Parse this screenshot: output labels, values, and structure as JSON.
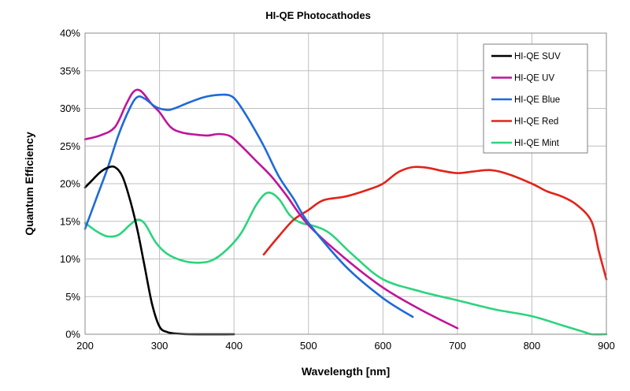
{
  "chart_data": {
    "type": "line",
    "title": "HI-QE Photocathodes",
    "xlabel": "Wavelength [nm]",
    "ylabel": "Quantum Efficiency",
    "xlim": [
      200,
      900
    ],
    "ylim": [
      0,
      0.4
    ],
    "x_ticks": [
      200,
      300,
      400,
      500,
      600,
      700,
      800,
      900
    ],
    "x_tick_labels": [
      "200",
      "300",
      "400",
      "500",
      "600",
      "700",
      "800",
      "900"
    ],
    "y_ticks": [
      0,
      0.05,
      0.1,
      0.15,
      0.2,
      0.25,
      0.3,
      0.35,
      0.4
    ],
    "y_tick_labels": [
      "0%",
      "5%",
      "10%",
      "15%",
      "20%",
      "25%",
      "30%",
      "35%",
      "40%"
    ],
    "grid": true,
    "legend_position": "top-right",
    "series": [
      {
        "name": "HI-QE SUV",
        "color": "#000000",
        "points": [
          [
            200,
            0.195
          ],
          [
            210,
            0.205
          ],
          [
            220,
            0.215
          ],
          [
            230,
            0.221
          ],
          [
            240,
            0.222
          ],
          [
            250,
            0.21
          ],
          [
            260,
            0.18
          ],
          [
            270,
            0.14
          ],
          [
            280,
            0.09
          ],
          [
            290,
            0.04
          ],
          [
            300,
            0.01
          ],
          [
            310,
            0.003
          ],
          [
            320,
            0.001
          ],
          [
            340,
            0.0
          ],
          [
            400,
            0.0
          ]
        ]
      },
      {
        "name": "HI-QE UV",
        "color": "#c0149a",
        "points": [
          [
            200,
            0.259
          ],
          [
            220,
            0.264
          ],
          [
            240,
            0.275
          ],
          [
            255,
            0.305
          ],
          [
            265,
            0.322
          ],
          [
            275,
            0.323
          ],
          [
            290,
            0.305
          ],
          [
            300,
            0.295
          ],
          [
            315,
            0.275
          ],
          [
            330,
            0.268
          ],
          [
            350,
            0.265
          ],
          [
            365,
            0.264
          ],
          [
            380,
            0.266
          ],
          [
            395,
            0.263
          ],
          [
            410,
            0.25
          ],
          [
            430,
            0.23
          ],
          [
            450,
            0.21
          ],
          [
            470,
            0.185
          ],
          [
            500,
            0.145
          ],
          [
            550,
            0.1
          ],
          [
            600,
            0.062
          ],
          [
            650,
            0.033
          ],
          [
            700,
            0.008
          ]
        ]
      },
      {
        "name": "HI-QE Blue",
        "color": "#1f6ad8",
        "points": [
          [
            200,
            0.14
          ],
          [
            215,
            0.18
          ],
          [
            230,
            0.22
          ],
          [
            245,
            0.265
          ],
          [
            260,
            0.3
          ],
          [
            270,
            0.315
          ],
          [
            280,
            0.313
          ],
          [
            295,
            0.302
          ],
          [
            310,
            0.298
          ],
          [
            320,
            0.3
          ],
          [
            340,
            0.308
          ],
          [
            360,
            0.315
          ],
          [
            380,
            0.318
          ],
          [
            395,
            0.317
          ],
          [
            405,
            0.308
          ],
          [
            420,
            0.285
          ],
          [
            440,
            0.25
          ],
          [
            460,
            0.21
          ],
          [
            480,
            0.18
          ],
          [
            500,
            0.148
          ],
          [
            550,
            0.09
          ],
          [
            600,
            0.048
          ],
          [
            640,
            0.023
          ]
        ]
      },
      {
        "name": "HI-QE Red",
        "color": "#e2231a",
        "points": [
          [
            440,
            0.106
          ],
          [
            460,
            0.13
          ],
          [
            480,
            0.152
          ],
          [
            500,
            0.165
          ],
          [
            520,
            0.178
          ],
          [
            550,
            0.183
          ],
          [
            580,
            0.192
          ],
          [
            600,
            0.2
          ],
          [
            620,
            0.215
          ],
          [
            640,
            0.222
          ],
          [
            660,
            0.221
          ],
          [
            680,
            0.217
          ],
          [
            700,
            0.214
          ],
          [
            720,
            0.216
          ],
          [
            745,
            0.218
          ],
          [
            770,
            0.212
          ],
          [
            800,
            0.2
          ],
          [
            820,
            0.19
          ],
          [
            840,
            0.183
          ],
          [
            860,
            0.172
          ],
          [
            880,
            0.15
          ],
          [
            890,
            0.11
          ],
          [
            900,
            0.073
          ]
        ]
      },
      {
        "name": "HI-QE Mint",
        "color": "#2bd47d",
        "points": [
          [
            200,
            0.148
          ],
          [
            215,
            0.137
          ],
          [
            230,
            0.13
          ],
          [
            245,
            0.132
          ],
          [
            260,
            0.145
          ],
          [
            270,
            0.152
          ],
          [
            280,
            0.147
          ],
          [
            295,
            0.122
          ],
          [
            310,
            0.107
          ],
          [
            330,
            0.098
          ],
          [
            350,
            0.095
          ],
          [
            370,
            0.098
          ],
          [
            390,
            0.112
          ],
          [
            410,
            0.135
          ],
          [
            430,
            0.172
          ],
          [
            445,
            0.188
          ],
          [
            460,
            0.18
          ],
          [
            475,
            0.158
          ],
          [
            490,
            0.148
          ],
          [
            510,
            0.143
          ],
          [
            530,
            0.133
          ],
          [
            560,
            0.105
          ],
          [
            600,
            0.073
          ],
          [
            650,
            0.057
          ],
          [
            700,
            0.045
          ],
          [
            750,
            0.033
          ],
          [
            800,
            0.024
          ],
          [
            840,
            0.012
          ],
          [
            870,
            0.003
          ],
          [
            880,
            0.0
          ],
          [
            900,
            0.0
          ]
        ]
      }
    ]
  }
}
